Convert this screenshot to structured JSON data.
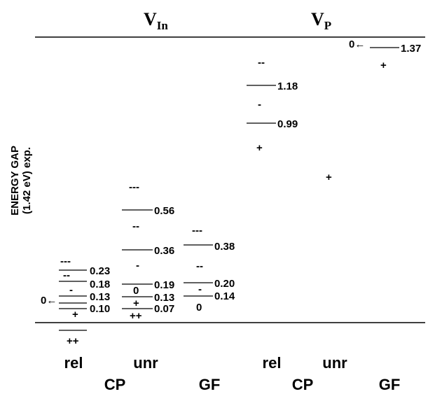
{
  "headers": {
    "vin": {
      "main": "V",
      "sub": "In"
    },
    "vp": {
      "main": "V",
      "sub": "P"
    }
  },
  "ylabel": {
    "line1": "ENERGY GAP",
    "line2": "(1.42 eV) exp."
  },
  "methods_row1": [
    "rel",
    "unr",
    "rel",
    "unr"
  ],
  "methods_row2": [
    "CP",
    "GF",
    "CP",
    "GF"
  ],
  "diagram": {
    "energy_gap_eV": 1.42,
    "columns": [
      {
        "defect": "V_In",
        "method": "CP rel",
        "levels": [
          {
            "value": "0.23",
            "lower": "---",
            "upper": "--"
          },
          {
            "value": "0.18",
            "lower": "--",
            "upper": "-"
          },
          {
            "value": "0.13",
            "lower": "-",
            "upper": "0",
            "marker": "0←"
          },
          {
            "value": "0.10",
            "lower": "0",
            "upper": "+"
          },
          {
            "value": "",
            "lower": "+",
            "upper": "++"
          }
        ]
      },
      {
        "defect": "V_In",
        "method": "CP unr",
        "levels": [
          {
            "value": "0.56",
            "lower": "---",
            "upper": "--"
          },
          {
            "value": "0.36",
            "lower": "--",
            "upper": "-"
          },
          {
            "value": "0.19",
            "lower": "-",
            "upper": "0"
          },
          {
            "value": "0.13",
            "lower": "0",
            "upper": "+"
          },
          {
            "value": "0.07",
            "lower": "+",
            "upper": "++"
          }
        ]
      },
      {
        "defect": "V_In",
        "method": "GF",
        "levels": [
          {
            "value": "0.38",
            "lower": "---",
            "upper": "--"
          },
          {
            "value": "0.20",
            "lower": "--",
            "upper": "-"
          },
          {
            "value": "0.14",
            "lower": "-",
            "upper": "0"
          }
        ]
      },
      {
        "defect": "V_P",
        "method": "CP rel",
        "levels": [
          {
            "value": "1.18",
            "lower": "--",
            "upper": "-"
          },
          {
            "value": "0.99",
            "lower": "-",
            "upper": "+"
          }
        ]
      },
      {
        "defect": "V_P",
        "method": "CP unr",
        "levels": [
          {
            "value": "",
            "lower": "",
            "upper": "+"
          }
        ]
      },
      {
        "defect": "V_P",
        "method": "GF",
        "levels": [
          {
            "value": "1.37",
            "lower": "",
            "upper": "+",
            "marker": "0←"
          }
        ]
      }
    ]
  }
}
